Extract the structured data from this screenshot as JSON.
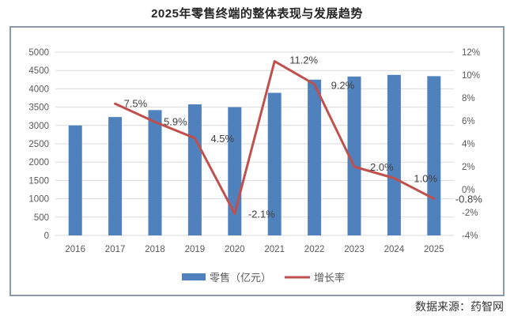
{
  "title": "2025年零售终端的整体表现与发展趋势",
  "source_note": "数据来源：药智网",
  "colors": {
    "bar": "#4F81BD",
    "line": "#C0504D",
    "grid": "#D9D9D9",
    "axis_text": "#595959",
    "data_label_text": "#404040",
    "legend_text": "#595959",
    "frame_border": "#8A99AC"
  },
  "chart_data": {
    "type": "combo",
    "title": "2025年零售终端的整体表现与发展趋势",
    "categories": [
      "2016",
      "2017",
      "2018",
      "2019",
      "2020",
      "2021",
      "2022",
      "2023",
      "2024",
      "2025"
    ],
    "series": [
      {
        "name": "零售（亿元）",
        "type": "bar",
        "axis": "left",
        "color": "#4F81BD",
        "values": [
          3000,
          3230,
          3420,
          3575,
          3500,
          3890,
          4250,
          4335,
          4380,
          4345
        ]
      },
      {
        "name": "增长率",
        "type": "line",
        "axis": "right",
        "color": "#C0504D",
        "values": [
          null,
          7.5,
          5.9,
          4.5,
          -2.1,
          11.2,
          9.2,
          2.0,
          1.0,
          -0.8
        ],
        "point_labels": [
          "",
          "7.5%",
          "5.9%",
          "4.5%",
          "-2.1%",
          "11.2%",
          "9.2%",
          "2.0%",
          "1.0%",
          "-0.8%"
        ]
      }
    ],
    "left_axis": {
      "min": 0,
      "max": 5000,
      "step": 500,
      "tick_labels": [
        "0",
        "500",
        "1000",
        "1500",
        "2000",
        "2500",
        "3000",
        "3500",
        "4000",
        "4500",
        "5000"
      ]
    },
    "right_axis": {
      "min": -4,
      "max": 12,
      "step": 2,
      "tick_labels": [
        "-4%",
        "-2%",
        "0%",
        "2%",
        "4%",
        "6%",
        "8%",
        "10%",
        "12%"
      ]
    },
    "grid": true,
    "legend_position": "bottom"
  },
  "legend": {
    "items": [
      {
        "label": "零售（亿元）",
        "swatch": "bar-swatch",
        "color": "#4F81BD"
      },
      {
        "label": "增长率",
        "swatch": "line-swatch",
        "color": "#C0504D"
      }
    ]
  }
}
